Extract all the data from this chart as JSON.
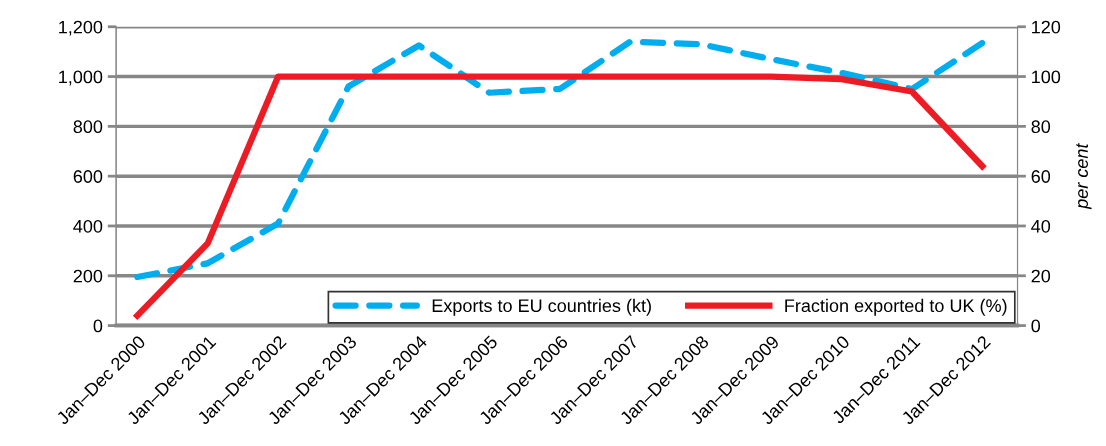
{
  "chart_data": {
    "type": "line",
    "categories": [
      "Jan–Dec 2000",
      "Jan–Dec 2001",
      "Jan–Dec 2002",
      "Jan–Dec 2003",
      "Jan–Dec 2004",
      "Jan–Dec 2005",
      "Jan–Dec 2006",
      "Jan–Dec 2007",
      "Jan–Dec 2008",
      "Jan–Dec 2009",
      "Jan–Dec 2010",
      "Jan–Dec 2011",
      "Jan–Dec 2012"
    ],
    "series": [
      {
        "name": "Exports to EU countries (kt)",
        "color": "#00aeef",
        "line_style": "dashed",
        "values": [
          195,
          250,
          410,
          960,
          1125,
          935,
          950,
          1140,
          1130,
          1070,
          1015,
          950,
          1135
        ]
      },
      {
        "name": "Fraction exported to UK (%)",
        "color": "#ed1c24",
        "line_style": "solid",
        "axis": "y2",
        "values": [
          4,
          33,
          100,
          100,
          100,
          100,
          100,
          100,
          100,
          100,
          99,
          94,
          64
        ]
      }
    ],
    "ylim": [
      0,
      1200
    ],
    "yticks": [
      0,
      {
        "value": 200,
        "label": "200"
      },
      {
        "value": 400,
        "label": "400"
      },
      {
        "value": 600,
        "label": "600"
      },
      {
        "value": 800,
        "label": "800"
      },
      {
        "value": 1000,
        "label": "1,000"
      },
      {
        "value": 1200,
        "label": "1,200"
      }
    ],
    "y2lim": [
      0,
      120
    ],
    "y2ticks": [
      0,
      20,
      40,
      60,
      80,
      100,
      120
    ],
    "y2label": "per cent",
    "grid": "y",
    "legend": "bottom right",
    "marker": "none"
  }
}
